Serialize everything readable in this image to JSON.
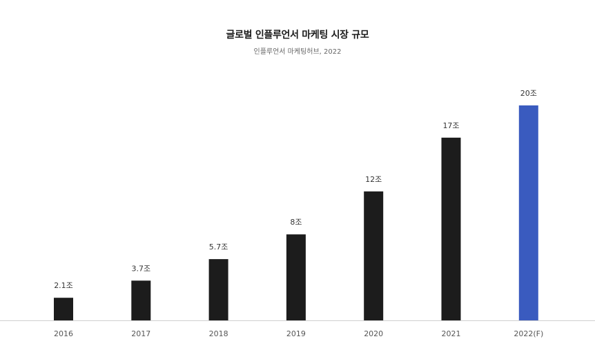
{
  "chart_data": {
    "type": "bar",
    "title": "글로벌 인플루언서 마케팅 시장 규모",
    "subtitle": "인플루언서 마케팅허브, 2022",
    "xlabel": "",
    "ylabel": "",
    "categories": [
      "2016",
      "2017",
      "2018",
      "2019",
      "2020",
      "2021",
      "2022(F)"
    ],
    "values": [
      2.1,
      3.7,
      5.7,
      8,
      12,
      17,
      20
    ],
    "data_labels": [
      "2.1조",
      "3.7조",
      "5.7조",
      "8조",
      "12조",
      "17조",
      "20조"
    ],
    "ylim": [
      0,
      20
    ],
    "grid": false,
    "legend": "none",
    "bar_color": "#1c1c1c",
    "highlight_color": "#3a5bbf",
    "highlight_index": 6,
    "axis_color": "#cfcfcf",
    "label_color": "#333333",
    "tick_color": "#555555"
  }
}
